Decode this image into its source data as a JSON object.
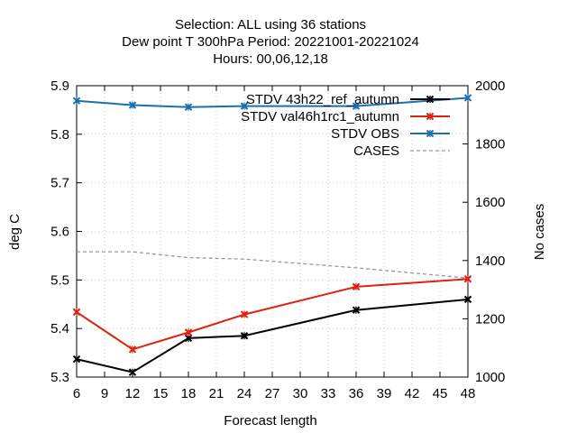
{
  "title_lines": [
    "Selection: ALL using    36 stations",
    "Dew point T 300hPa   Period: 20221001-20221024",
    "Hours:  00,06,12,18"
  ],
  "chart_data": {
    "type": "line",
    "xlabel": "Forecast length",
    "ylabel": "deg C",
    "y2label": "No cases",
    "xlim": [
      6,
      48
    ],
    "ylim": [
      5.3,
      5.9
    ],
    "y2lim": [
      1000,
      2000
    ],
    "xticks": [
      6,
      9,
      12,
      15,
      18,
      21,
      24,
      27,
      30,
      33,
      36,
      39,
      42,
      45,
      48
    ],
    "yticks": [
      "5.3",
      "5.4",
      "5.5",
      "5.6",
      "5.7",
      "5.8",
      "5.9"
    ],
    "y2ticks": [
      "1000",
      "1200",
      "1400",
      "1600",
      "1800",
      "2000"
    ],
    "legend_position": "top-right",
    "series": [
      {
        "name": "STDV 43h22_ref_autumn",
        "axis": "y",
        "color": "#000000",
        "marker": "x",
        "x": [
          6,
          12,
          18,
          24,
          36,
          48
        ],
        "y": [
          5.337,
          5.31,
          5.38,
          5.385,
          5.438,
          5.46
        ]
      },
      {
        "name": "STDV val46h1rc1_autumn",
        "axis": "y",
        "color": "#dd2211",
        "marker": "x",
        "x": [
          6,
          12,
          18,
          24,
          36,
          48
        ],
        "y": [
          5.434,
          5.357,
          5.392,
          5.429,
          5.486,
          5.502
        ]
      },
      {
        "name": "STDV OBS",
        "axis": "y",
        "color": "#1a6fb0",
        "marker": "x",
        "x": [
          6,
          12,
          18,
          24,
          36,
          48
        ],
        "y": [
          5.869,
          5.86,
          5.856,
          5.858,
          5.858,
          5.875
        ]
      },
      {
        "name": "CASES",
        "axis": "y2",
        "color": "#999999",
        "dashed": true,
        "x": [
          6,
          12,
          18,
          24,
          36,
          48
        ],
        "y": [
          1430,
          1430,
          1410,
          1405,
          1375,
          1340
        ]
      }
    ]
  }
}
